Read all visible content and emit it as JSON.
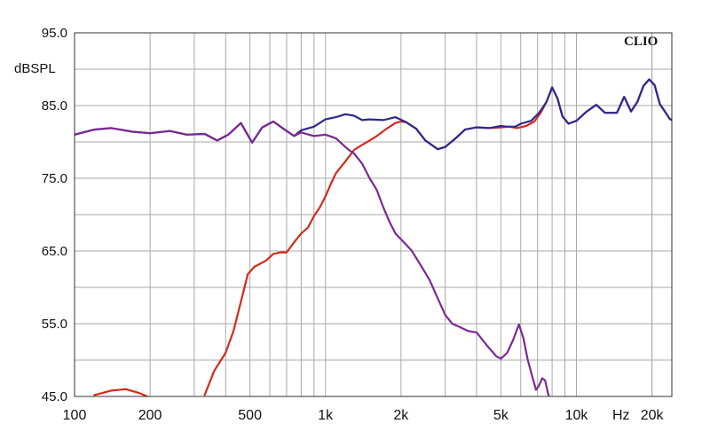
{
  "chart_data": {
    "type": "line",
    "brand": "CLIO",
    "ylabel": "dBSPL",
    "xunit": "Hz",
    "xscale": "log",
    "xlim": [
      100,
      24000
    ],
    "ylim": [
      45,
      95
    ],
    "grid": true,
    "yticks": [
      {
        "value": 95,
        "label": "95.0"
      },
      {
        "value": 85,
        "label": "85.0"
      },
      {
        "value": 75,
        "label": "75.0"
      },
      {
        "value": 65,
        "label": "65.0"
      },
      {
        "value": 55,
        "label": "55.0"
      },
      {
        "value": 45,
        "label": "45.0"
      }
    ],
    "xticks": [
      {
        "value": 100,
        "label": "100"
      },
      {
        "value": 200,
        "label": "200"
      },
      {
        "value": 500,
        "label": "500"
      },
      {
        "value": 1000,
        "label": "1k"
      },
      {
        "value": 2000,
        "label": "2k"
      },
      {
        "value": 5000,
        "label": "5k"
      },
      {
        "value": 10000,
        "label": "10k"
      },
      {
        "value": 20000,
        "label": "20k"
      }
    ],
    "series": [
      {
        "color": "#2e2a8c",
        "points": [
          [
            100,
            81.0
          ],
          [
            120,
            81.7
          ],
          [
            140,
            81.9
          ],
          [
            170,
            81.4
          ],
          [
            200,
            81.2
          ],
          [
            240,
            81.5
          ],
          [
            280,
            81.0
          ],
          [
            330,
            81.1
          ],
          [
            370,
            80.2
          ],
          [
            410,
            81.0
          ],
          [
            460,
            82.6
          ],
          [
            510,
            79.9
          ],
          [
            560,
            82.0
          ],
          [
            620,
            82.8
          ],
          [
            680,
            81.8
          ],
          [
            750,
            80.8
          ],
          [
            800,
            81.6
          ],
          [
            900,
            82.1
          ],
          [
            1000,
            83.1
          ],
          [
            1100,
            83.4
          ],
          [
            1200,
            83.8
          ],
          [
            1300,
            83.6
          ],
          [
            1400,
            83.0
          ],
          [
            1500,
            83.1
          ],
          [
            1700,
            83.0
          ],
          [
            1900,
            83.4
          ],
          [
            2100,
            82.7
          ],
          [
            2300,
            81.8
          ],
          [
            2500,
            80.2
          ],
          [
            2800,
            79.0
          ],
          [
            3000,
            79.3
          ],
          [
            3300,
            80.5
          ],
          [
            3600,
            81.7
          ],
          [
            4000,
            82.0
          ],
          [
            4500,
            81.9
          ],
          [
            5000,
            82.2
          ],
          [
            5300,
            82.1
          ],
          [
            5700,
            82.1
          ],
          [
            6000,
            82.5
          ],
          [
            6600,
            82.9
          ],
          [
            7100,
            84.0
          ],
          [
            7600,
            85.5
          ],
          [
            8000,
            87.5
          ],
          [
            8400,
            86.0
          ],
          [
            8800,
            83.5
          ],
          [
            9300,
            82.5
          ],
          [
            10000,
            82.9
          ],
          [
            11000,
            84.2
          ],
          [
            12000,
            85.1
          ],
          [
            13000,
            84.0
          ],
          [
            14500,
            84.0
          ],
          [
            15500,
            86.2
          ],
          [
            16500,
            84.2
          ],
          [
            17500,
            85.5
          ],
          [
            18500,
            87.7
          ],
          [
            19500,
            88.6
          ],
          [
            20500,
            87.8
          ],
          [
            21500,
            85.2
          ],
          [
            22500,
            84.2
          ],
          [
            23500,
            83.2
          ],
          [
            24000,
            83.0
          ]
        ]
      },
      {
        "color": "#d42a1a",
        "points": [
          [
            120,
            45.2
          ],
          [
            140,
            45.8
          ],
          [
            160,
            46.0
          ],
          [
            180,
            45.5
          ],
          [
            195,
            45.0
          ],
          [
            330,
            45.2
          ],
          [
            360,
            48.5
          ],
          [
            400,
            51.0
          ],
          [
            430,
            54.0
          ],
          [
            460,
            58.0
          ],
          [
            490,
            61.8
          ],
          [
            520,
            62.8
          ],
          [
            580,
            63.7
          ],
          [
            620,
            64.6
          ],
          [
            660,
            64.8
          ],
          [
            700,
            64.8
          ],
          [
            750,
            66.2
          ],
          [
            800,
            67.4
          ],
          [
            850,
            68.2
          ],
          [
            900,
            69.8
          ],
          [
            950,
            71.0
          ],
          [
            1000,
            72.5
          ],
          [
            1050,
            74.2
          ],
          [
            1100,
            75.7
          ],
          [
            1200,
            77.3
          ],
          [
            1300,
            78.9
          ],
          [
            1400,
            79.6
          ],
          [
            1500,
            80.2
          ],
          [
            1600,
            80.8
          ],
          [
            1750,
            81.8
          ],
          [
            1900,
            82.6
          ],
          [
            2000,
            82.8
          ],
          [
            2100,
            82.7
          ],
          [
            2300,
            81.8
          ],
          [
            2500,
            80.2
          ],
          [
            2800,
            79.0
          ],
          [
            3000,
            79.3
          ],
          [
            3300,
            80.5
          ],
          [
            3600,
            81.7
          ],
          [
            4000,
            82.0
          ],
          [
            4500,
            81.9
          ],
          [
            5000,
            82.0
          ],
          [
            5400,
            82.1
          ],
          [
            5800,
            81.9
          ],
          [
            6300,
            82.2
          ],
          [
            6800,
            82.8
          ],
          [
            7200,
            84.0
          ],
          [
            7600,
            85.5
          ],
          [
            8000,
            87.5
          ],
          [
            8400,
            86.0
          ],
          [
            8800,
            83.5
          ],
          [
            9300,
            82.5
          ],
          [
            10000,
            82.9
          ],
          [
            11000,
            84.2
          ],
          [
            12000,
            85.1
          ],
          [
            13000,
            84.0
          ],
          [
            14500,
            84.0
          ],
          [
            15500,
            86.2
          ],
          [
            16500,
            84.2
          ],
          [
            17500,
            85.5
          ],
          [
            18500,
            87.7
          ],
          [
            19500,
            88.6
          ],
          [
            20500,
            87.8
          ],
          [
            21500,
            85.2
          ],
          [
            22500,
            84.2
          ],
          [
            23500,
            83.2
          ],
          [
            24000,
            83.0
          ]
        ]
      },
      {
        "color": "#7a2a92",
        "points": [
          [
            100,
            81.0
          ],
          [
            120,
            81.7
          ],
          [
            140,
            81.9
          ],
          [
            170,
            81.4
          ],
          [
            200,
            81.2
          ],
          [
            240,
            81.5
          ],
          [
            280,
            81.0
          ],
          [
            330,
            81.1
          ],
          [
            370,
            80.2
          ],
          [
            410,
            81.0
          ],
          [
            460,
            82.6
          ],
          [
            510,
            79.9
          ],
          [
            560,
            82.0
          ],
          [
            620,
            82.8
          ],
          [
            680,
            81.8
          ],
          [
            750,
            80.8
          ],
          [
            800,
            81.3
          ],
          [
            900,
            80.8
          ],
          [
            1000,
            81.0
          ],
          [
            1100,
            80.5
          ],
          [
            1200,
            79.3
          ],
          [
            1250,
            78.8
          ],
          [
            1300,
            78.4
          ],
          [
            1400,
            77.0
          ],
          [
            1500,
            75.0
          ],
          [
            1600,
            73.4
          ],
          [
            1700,
            71.0
          ],
          [
            1800,
            69.0
          ],
          [
            1900,
            67.4
          ],
          [
            2000,
            66.6
          ],
          [
            2200,
            65.1
          ],
          [
            2400,
            63.0
          ],
          [
            2600,
            61.0
          ],
          [
            2800,
            58.5
          ],
          [
            3000,
            56.2
          ],
          [
            3200,
            55.0
          ],
          [
            3400,
            54.6
          ],
          [
            3700,
            54.0
          ],
          [
            4000,
            53.8
          ],
          [
            4400,
            52.0
          ],
          [
            4800,
            50.5
          ],
          [
            5000,
            50.2
          ],
          [
            5300,
            51.0
          ],
          [
            5600,
            52.8
          ],
          [
            5900,
            54.9
          ],
          [
            6150,
            53.0
          ],
          [
            6400,
            50.0
          ],
          [
            6700,
            47.5
          ],
          [
            6900,
            45.9
          ],
          [
            7100,
            46.5
          ],
          [
            7300,
            47.5
          ],
          [
            7500,
            47.2
          ],
          [
            7700,
            45.5
          ],
          [
            7800,
            44.8
          ]
        ]
      }
    ]
  }
}
